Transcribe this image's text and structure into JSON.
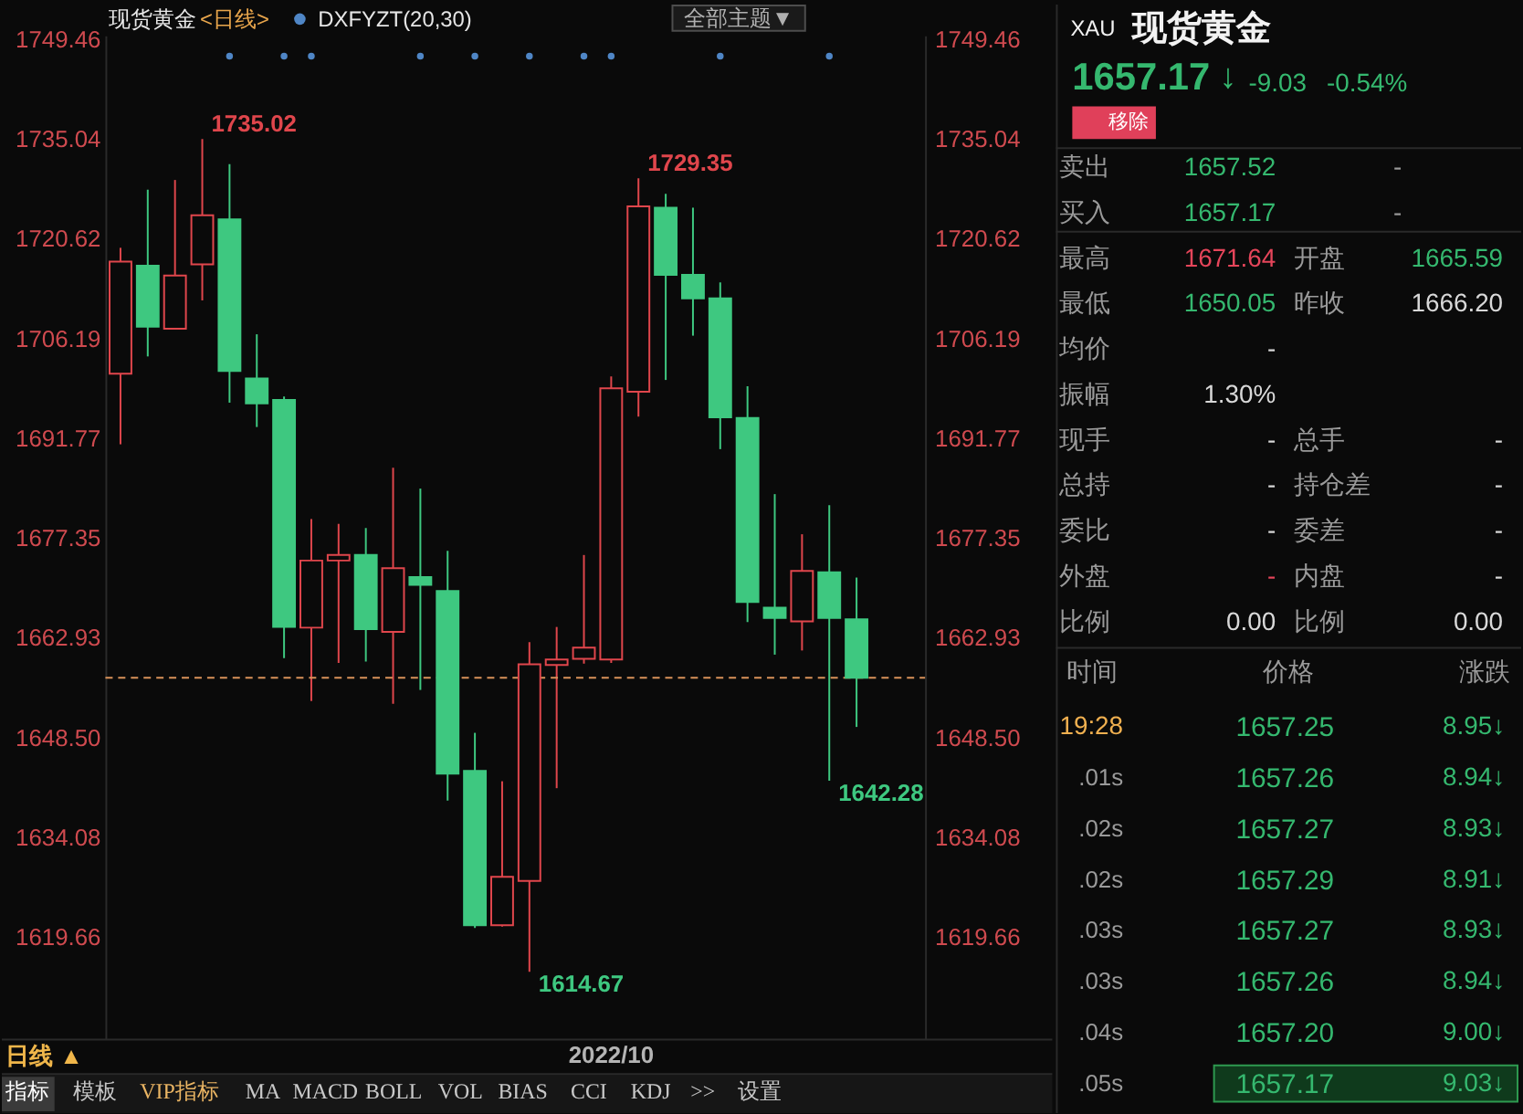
{
  "chart_data": [
    {
      "type": "candlestick",
      "title": "现货黄金",
      "subtitle": "<日线>",
      "categories": [
        null,
        null,
        null,
        null,
        null,
        null,
        null,
        null,
        null,
        null,
        null,
        null,
        null,
        null,
        null,
        null,
        null,
        null,
        "2022/10",
        null,
        null,
        null,
        null,
        null,
        null,
        null,
        null,
        null
      ],
      "ohlc": [
        [
          1701.1,
          1719.3,
          1690.9,
          1717.3
        ],
        [
          1716.7,
          1727.7,
          1703.6,
          1707.9
        ],
        [
          1707.6,
          1729.1,
          1707.6,
          1715.3
        ],
        [
          1716.9,
          1735.02,
          1711.7,
          1724.0
        ],
        [
          1723.4,
          1731.4,
          1696.9,
          1701.5
        ],
        [
          1700.4,
          1706.8,
          1693.4,
          1696.8
        ],
        [
          1697.3,
          1697.8,
          1660.0,
          1664.5
        ],
        [
          1664.4,
          1680.1,
          1653.8,
          1674.1
        ],
        [
          1674.1,
          1679.4,
          1659.3,
          1674.9
        ],
        [
          1674.9,
          1678.8,
          1659.5,
          1664.2
        ],
        [
          1663.8,
          1687.5,
          1653.4,
          1673.0
        ],
        [
          1671.7,
          1684.5,
          1655.4,
          1670.6
        ],
        [
          1669.7,
          1675.5,
          1639.4,
          1643.3
        ],
        [
          1643.7,
          1649.2,
          1621.0,
          1621.4
        ],
        [
          1621.4,
          1642.2,
          1621.2,
          1628.4
        ],
        [
          1627.8,
          1662.3,
          1614.67,
          1659.1
        ],
        [
          1659.0,
          1664.5,
          1641.2,
          1659.8
        ],
        [
          1659.9,
          1674.9,
          1659.2,
          1661.5
        ],
        [
          1659.8,
          1700.7,
          1659.3,
          1699.0
        ],
        [
          1698.5,
          1729.35,
          1694.9,
          1725.3
        ],
        [
          1725.1,
          1727.1,
          1700.2,
          1715.4
        ],
        [
          1715.4,
          1725.1,
          1706.6,
          1712.0
        ],
        [
          1712.0,
          1714.3,
          1690.2,
          1694.8
        ],
        [
          1694.7,
          1699.3,
          1665.2,
          1668.1
        ],
        [
          1667.3,
          1683.7,
          1660.5,
          1665.8
        ],
        [
          1665.3,
          1677.9,
          1661.1,
          1672.6
        ],
        [
          1672.4,
          1682.1,
          1642.28,
          1665.8
        ],
        [
          1665.59,
          1671.64,
          1650.05,
          1657.17
        ]
      ],
      "colors": [
        "#e0464c",
        "#3ec880",
        "#e0464c",
        "#e0464c",
        "#3ec880",
        "#3ec880",
        "#3ec880",
        "#e0464c",
        "#e0464c",
        "#3ec880",
        "#e0464c",
        "#3ec880",
        "#3ec880",
        "#3ec880",
        "#e0464c",
        "#e0464c",
        "#e0464c",
        "#e0464c",
        "#e0464c",
        "#e0464c",
        "#3ec880",
        "#3ec880",
        "#3ec880",
        "#3ec880",
        "#3ec880",
        "#e0464c",
        "#3ec880",
        "#3ec880"
      ],
      "value_labels": [
        null,
        null,
        null,
        "1735.02",
        null,
        null,
        null,
        null,
        null,
        null,
        null,
        null,
        null,
        null,
        null,
        "1614.67",
        null,
        null,
        null,
        "1729.35",
        null,
        null,
        null,
        null,
        null,
        null,
        "1642.28",
        null
      ],
      "series": [
        {
          "type": "scatter",
          "name": "DXFYZT(20,30)",
          "color": "#4f86c6",
          "marker": "circle",
          "values": [
            null,
            null,
            null,
            null,
            1747,
            null,
            1747,
            1747,
            null,
            null,
            null,
            1747,
            null,
            1747,
            null,
            1747,
            null,
            1747,
            1747,
            null,
            null,
            null,
            1747,
            null,
            null,
            null,
            1747,
            null
          ]
        }
      ],
      "ylim": [
        1605,
        1750
      ],
      "yticks": [
        1749.46,
        1735.04,
        1720.62,
        1706.19,
        1691.77,
        1677.35,
        1662.93,
        {
          "value": 1648.5,
          "label": "1648.50"
        },
        1634.08,
        1619.66
      ],
      "y2lim": [
        1605,
        1750
      ],
      "y2ticks": [
        1749.46,
        1735.04,
        1720.62,
        1706.19,
        1691.77,
        1677.35,
        1662.93,
        {
          "value": 1648.5,
          "label": "1648.50"
        },
        1634.08,
        1619.66
      ],
      "ref_lines": [
        {
          "axis": "y",
          "value": 1657.17,
          "color": "#d9925a",
          "line_style": "dashed"
        }
      ],
      "legend": "top left",
      "annotations": [
        "全部主题▼",
        "日线 ▲",
        "指标",
        "模板",
        "VIP指标",
        "MA",
        "MACD",
        "BOLL",
        "VOL",
        "BIAS",
        "CCI",
        "KDJ",
        ">>",
        "设置"
      ]
    },
    {
      "type": "other",
      "title": "现货黄金",
      "annotations": [
        "XAU",
        "1657.17",
        "↓",
        "-9.03",
        "-0.54%",
        "移除",
        "卖出",
        "1657.52",
        "-",
        "买入",
        "1657.17",
        "-",
        "最高",
        "1671.64",
        "开盘",
        "1665.59",
        "最低",
        "1650.05",
        "昨收",
        "1666.20",
        "均价",
        "-",
        "振幅",
        "1.30%",
        "现手",
        "-",
        "总手",
        "-",
        "总持",
        "-",
        "持仓差",
        "-",
        "委比",
        "-",
        "委差",
        "-",
        "外盘",
        "-",
        "内盘",
        "-",
        "比例",
        "0.00",
        "比例",
        "0.00",
        "时间",
        "价格",
        "涨跌",
        "19:28",
        "1657.25",
        "8.95↓",
        ".01s",
        "1657.26",
        "8.94↓",
        ".02s",
        "1657.27",
        "8.93↓",
        ".02s",
        "1657.29",
        "8.91↓",
        ".03s",
        "1657.27",
        "8.93↓",
        ".03s",
        "1657.26",
        "8.94↓",
        ".04s",
        "1657.20",
        "9.00↓",
        ".05s",
        "1657.17",
        "9.03↓"
      ]
    }
  ]
}
